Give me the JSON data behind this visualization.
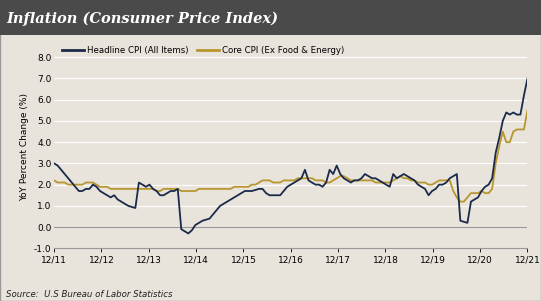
{
  "title": "Inflation (Consumer Price Index)",
  "ylabel": "YoY Percent Change (%)",
  "source": "Source:  U.S Bureau of Labor Statistics",
  "legend": [
    "Headline CPI (All Items)",
    "Core CPI (Ex Food & Energy)"
  ],
  "headline_color": "#1b2a4a",
  "core_color": "#b8962e",
  "background_color": "#e8e4dc",
  "plot_bg_color": "#e8e4dc",
  "title_bg_color": "#4a4a4a",
  "title_text_color": "#ffffff",
  "border_color": "#999999",
  "ylim": [
    -1.0,
    8.5
  ],
  "yticks": [
    -1.0,
    0.0,
    1.0,
    2.0,
    3.0,
    4.0,
    5.0,
    6.0,
    7.0,
    8.0
  ],
  "xtick_labels": [
    "12/11",
    "12/12",
    "12/13",
    "12/14",
    "12/15",
    "12/16",
    "12/17",
    "12/18",
    "12/19",
    "12/20",
    "12/21"
  ],
  "headline_data": [
    3.0,
    2.9,
    2.7,
    2.5,
    2.3,
    2.1,
    1.9,
    1.7,
    1.7,
    1.8,
    1.8,
    2.0,
    1.9,
    1.7,
    1.6,
    1.5,
    1.4,
    1.5,
    1.3,
    1.2,
    1.1,
    1.0,
    0.95,
    0.9,
    2.1,
    2.0,
    1.9,
    2.0,
    1.8,
    1.7,
    1.5,
    1.5,
    1.6,
    1.7,
    1.7,
    1.8,
    -0.1,
    -0.2,
    -0.3,
    -0.15,
    0.1,
    0.2,
    0.3,
    0.35,
    0.4,
    0.6,
    0.8,
    1.0,
    1.1,
    1.2,
    1.3,
    1.4,
    1.5,
    1.6,
    1.7,
    1.7,
    1.7,
    1.75,
    1.8,
    1.8,
    1.6,
    1.5,
    1.5,
    1.5,
    1.5,
    1.7,
    1.9,
    2.0,
    2.1,
    2.2,
    2.3,
    2.7,
    2.2,
    2.1,
    2.0,
    2.0,
    1.9,
    2.1,
    2.7,
    2.5,
    2.9,
    2.5,
    2.3,
    2.2,
    2.1,
    2.2,
    2.2,
    2.3,
    2.5,
    2.4,
    2.3,
    2.3,
    2.2,
    2.1,
    2.0,
    1.9,
    2.5,
    2.3,
    2.4,
    2.5,
    2.4,
    2.3,
    2.2,
    2.0,
    1.9,
    1.8,
    1.5,
    1.7,
    1.8,
    2.0,
    2.0,
    2.1,
    2.3,
    2.4,
    2.5,
    0.3,
    0.25,
    0.2,
    1.2,
    1.3,
    1.4,
    1.7,
    1.9,
    2.0,
    2.3,
    3.5,
    4.2,
    5.0,
    5.4,
    5.3,
    5.4,
    5.3,
    5.3,
    6.2,
    7.0
  ],
  "core_data": [
    2.2,
    2.1,
    2.1,
    2.1,
    2.0,
    2.0,
    2.0,
    2.0,
    2.0,
    2.1,
    2.1,
    2.1,
    2.0,
    1.9,
    1.9,
    1.9,
    1.8,
    1.8,
    1.8,
    1.8,
    1.8,
    1.8,
    1.8,
    1.8,
    1.8,
    1.8,
    1.8,
    1.8,
    1.8,
    1.7,
    1.7,
    1.8,
    1.8,
    1.8,
    1.8,
    1.8,
    1.7,
    1.7,
    1.7,
    1.7,
    1.7,
    1.8,
    1.8,
    1.8,
    1.8,
    1.8,
    1.8,
    1.8,
    1.8,
    1.8,
    1.8,
    1.9,
    1.9,
    1.9,
    1.9,
    1.9,
    2.0,
    2.0,
    2.1,
    2.2,
    2.2,
    2.2,
    2.1,
    2.1,
    2.1,
    2.2,
    2.2,
    2.2,
    2.2,
    2.3,
    2.3,
    2.3,
    2.3,
    2.3,
    2.2,
    2.2,
    2.2,
    2.1,
    2.1,
    2.2,
    2.3,
    2.4,
    2.4,
    2.3,
    2.2,
    2.2,
    2.2,
    2.2,
    2.2,
    2.2,
    2.2,
    2.1,
    2.1,
    2.1,
    2.1,
    2.1,
    2.2,
    2.3,
    2.4,
    2.3,
    2.3,
    2.2,
    2.2,
    2.1,
    2.1,
    2.1,
    2.0,
    2.0,
    2.1,
    2.2,
    2.2,
    2.2,
    2.2,
    1.7,
    1.4,
    1.2,
    1.2,
    1.4,
    1.6,
    1.6,
    1.6,
    1.7,
    1.6,
    1.6,
    1.8,
    3.0,
    3.8,
    4.5,
    4.0,
    4.0,
    4.5,
    4.6,
    4.6,
    4.6,
    5.5
  ]
}
